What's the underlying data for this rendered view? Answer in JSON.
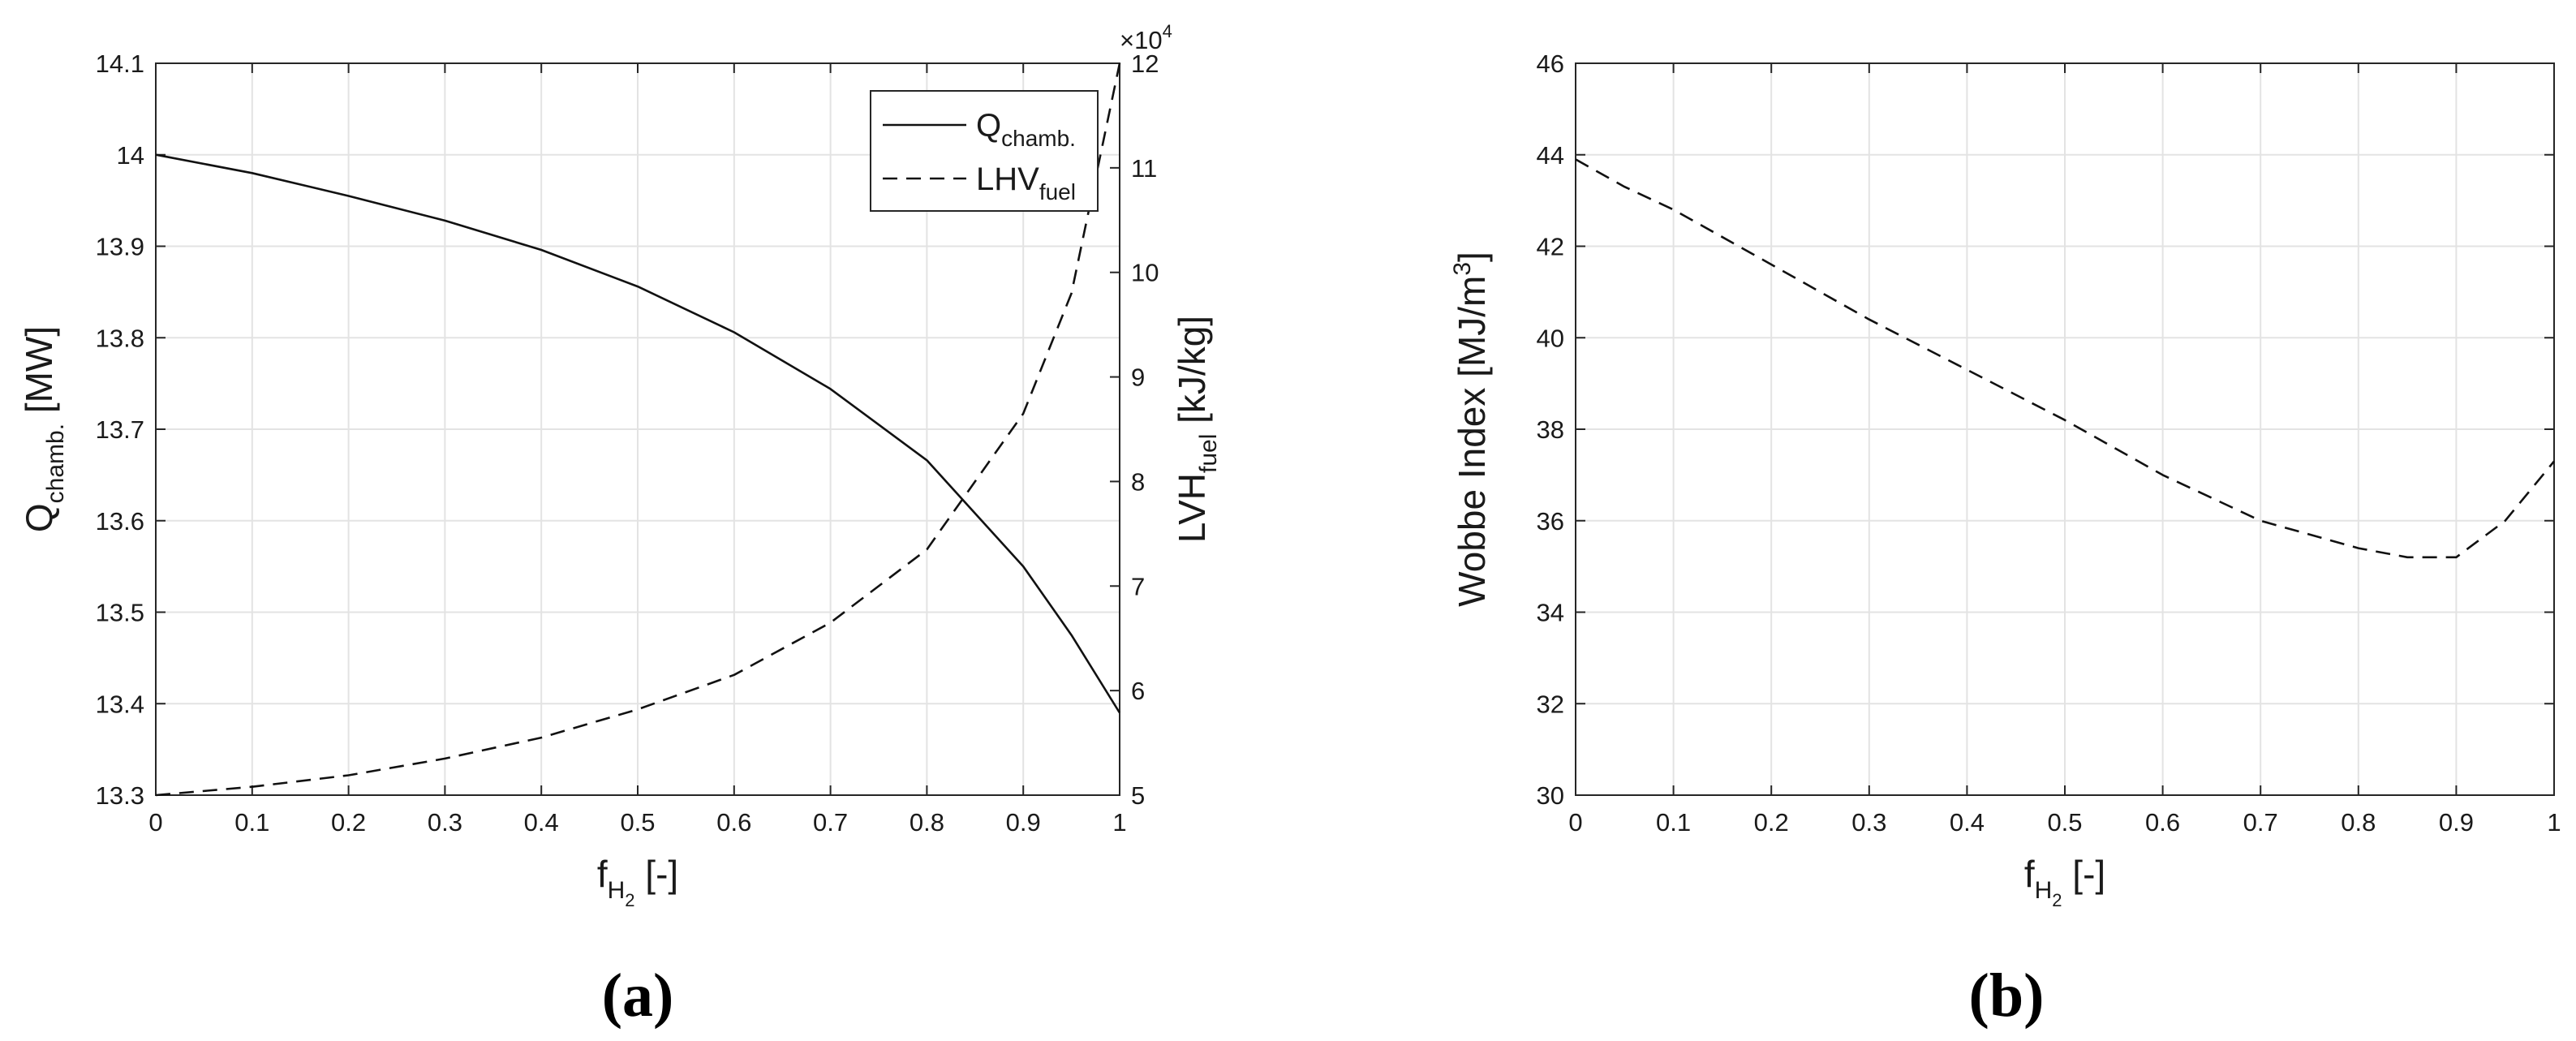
{
  "chart_data": [
    {
      "type": "line",
      "panel_label": "(a)",
      "grid": true,
      "legend": "top-right",
      "x": [
        0,
        0.1,
        0.2,
        0.3,
        0.4,
        0.5,
        0.6,
        0.7,
        0.8,
        0.9,
        0.95,
        1.0
      ],
      "xlim": [
        0,
        1
      ],
      "xticks": [
        "0",
        "0.1",
        "0.2",
        "0.3",
        "0.4",
        "0.5",
        "0.6",
        "0.7",
        "0.8",
        "0.9",
        "1"
      ],
      "xlabel": {
        "main": "f",
        "sub": "H",
        "subsub": "2",
        "tail": " [-]"
      },
      "ylim": [
        13.3,
        14.1
      ],
      "yticks": [
        "13.3",
        "13.4",
        "13.5",
        "13.6",
        "13.7",
        "13.8",
        "13.9",
        "14",
        "14.1"
      ],
      "ylabel": {
        "main": "Q",
        "sub": "chamb.",
        "tail": " [MW]"
      },
      "y2lim": [
        50000,
        120000
      ],
      "y2ticks": [
        "5",
        "6",
        "7",
        "8",
        "9",
        "10",
        "11",
        "12"
      ],
      "y2_multiplier": "×10",
      "y2_exponent": "4",
      "y2label": {
        "main": "LVH",
        "sub": "fuel",
        "tail": " [kJ/kg]"
      },
      "series": [
        {
          "name": "Q",
          "name_sub": "chamb.",
          "axis": "left",
          "style": "solid",
          "values": [
            14.0,
            13.98,
            13.955,
            13.928,
            13.896,
            13.856,
            13.806,
            13.744,
            13.666,
            13.55,
            13.475,
            13.39
          ]
        },
        {
          "name": "LHV",
          "name_sub": "fuel",
          "axis": "right",
          "style": "dashed",
          "values": [
            50000,
            50800,
            51900,
            53500,
            55500,
            58200,
            61500,
            66500,
            73500,
            86500,
            98000,
            120000
          ]
        }
      ]
    },
    {
      "type": "line",
      "panel_label": "(b)",
      "grid": true,
      "x": [
        0,
        0.05,
        0.1,
        0.2,
        0.3,
        0.4,
        0.5,
        0.6,
        0.7,
        0.8,
        0.85,
        0.9,
        0.95,
        1.0
      ],
      "xlim": [
        0,
        1
      ],
      "xticks": [
        "0",
        "0.1",
        "0.2",
        "0.3",
        "0.4",
        "0.5",
        "0.6",
        "0.7",
        "0.8",
        "0.9",
        "1"
      ],
      "xlabel": {
        "main": "f",
        "sub": "H",
        "subsub": "2",
        "tail": " [-]"
      },
      "ylim": [
        30,
        46
      ],
      "yticks": [
        "30",
        "32",
        "34",
        "36",
        "38",
        "40",
        "42",
        "44",
        "46"
      ],
      "ylabel": {
        "main": "Wobbe Index [MJ/m",
        "sup": "3",
        "tail": "]"
      },
      "series": [
        {
          "style": "dashed",
          "values": [
            43.9,
            43.3,
            42.8,
            41.6,
            40.4,
            39.3,
            38.2,
            37.0,
            36.0,
            35.4,
            35.2,
            35.2,
            36.0,
            37.3
          ]
        }
      ]
    }
  ]
}
